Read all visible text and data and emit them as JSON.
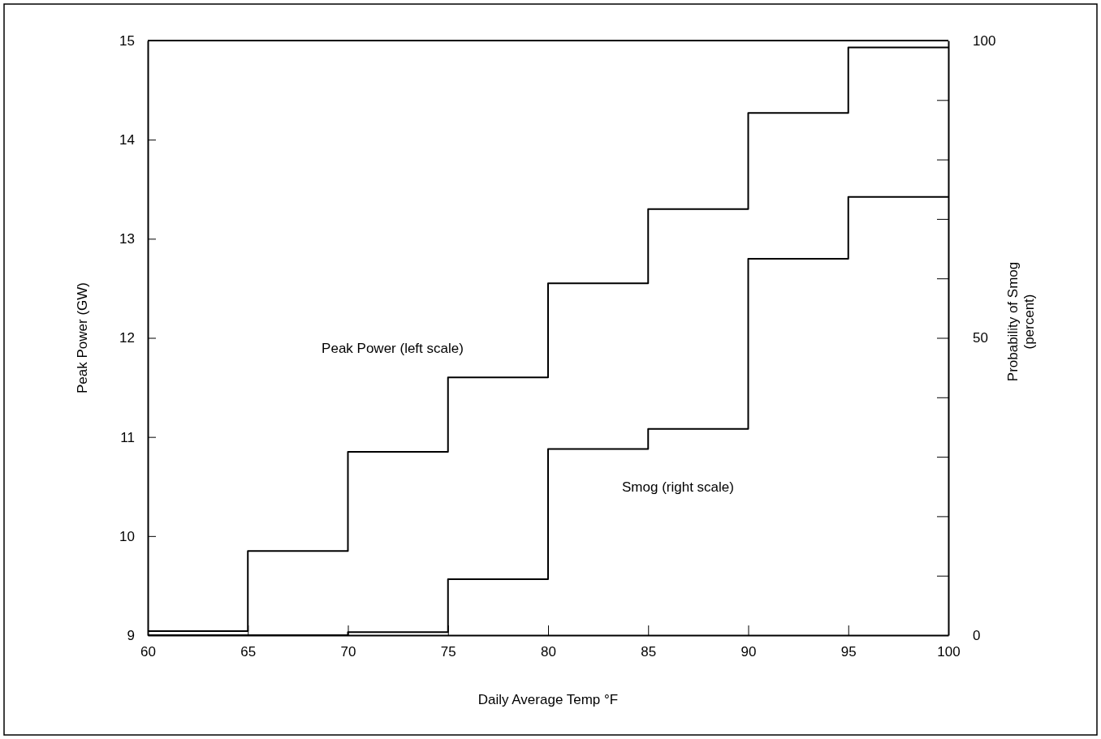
{
  "chart_data": {
    "type": "step",
    "xlabel": "Daily Average Temp °F",
    "ylabel": "Peak Power (GW)",
    "y2label": "Probability of Smog (percent)",
    "x": [
      60,
      65,
      70,
      75,
      80,
      85,
      90,
      95,
      100
    ],
    "series": [
      {
        "name": "Peak Power (left scale)",
        "color": "#000000",
        "values": [
          9.04,
          9.85,
          10.85,
          11.6,
          12.55,
          13.3,
          14.27,
          14.93,
          14.93
        ]
      },
      {
        "name": "Smog (right scale)",
        "color": "#000000",
        "axis": "y2",
        "values": [
          0,
          0,
          0.5,
          9.4,
          31.3,
          34.7,
          63.3,
          73.7,
          73.7
        ]
      }
    ],
    "xlim": [
      60,
      100
    ],
    "xticks": [
      60,
      65,
      70,
      75,
      80,
      85,
      90,
      95,
      100
    ],
    "ylim": [
      9,
      15
    ],
    "yticks": [
      9,
      10,
      11,
      12,
      13,
      14,
      15
    ],
    "y2lim": [
      0,
      100
    ],
    "y2ticks": [
      0,
      {
        "value": 10,
        "label": null
      },
      {
        "value": 20,
        "label": null
      },
      {
        "value": 30,
        "label": null
      },
      {
        "value": 40,
        "label": null
      },
      50,
      {
        "value": 60,
        "label": null
      },
      {
        "value": 70,
        "label": null
      },
      {
        "value": 80,
        "label": null
      },
      {
        "value": 90,
        "label": null
      },
      100
    ],
    "grid": false,
    "legend": false,
    "line_style": "solid",
    "marker": "none"
  }
}
